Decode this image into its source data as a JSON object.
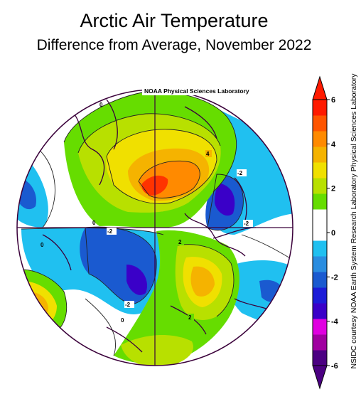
{
  "title": "Arctic Air Temperature",
  "subtitle": "Difference from Average, November 2022",
  "map_credit": "NOAA Physical Sciences Laboratory",
  "side_credit": "NSIDC courtesy NOAA Earth System Research Laboratory Physical Sciences Laboratory",
  "contour_labels": [
    "4",
    "-2",
    "-2",
    "2",
    "-2",
    "-2",
    "2",
    "0",
    "0",
    "0",
    "0"
  ],
  "colorbar": {
    "ticks": [
      "6",
      "4",
      "2",
      "0",
      "-2",
      "-4",
      "-6"
    ],
    "colors": [
      "#4b0082",
      "#a000a0",
      "#e000e0",
      "#3a00c8",
      "#1c1cd8",
      "#1a5ad0",
      "#2a8de0",
      "#20c0f0",
      "#ffffff",
      "#ffffff",
      "#66dd00",
      "#b8e000",
      "#f0e000",
      "#f5b300",
      "#ff8a00",
      "#ff5500",
      "#ff1a00"
    ]
  },
  "palette": {
    "cyan": "#20c0f0",
    "mid_blue": "#1a5ad0",
    "deep_blue": "#3a00c8",
    "green": "#66dd00",
    "yellow_green": "#b8e000",
    "yellow": "#f0e000",
    "orange": "#f5b300",
    "dark_orange": "#ff8a00",
    "red": "#ff3300"
  }
}
